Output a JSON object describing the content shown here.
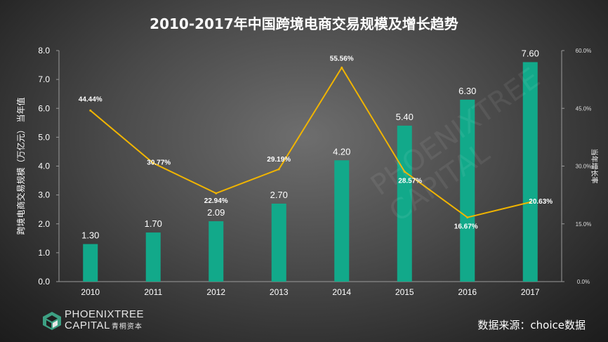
{
  "title": "2010-2017年中国跨境电商交易规模及增长趋势",
  "source": "数据来源：choice数据",
  "logo": {
    "line1": "PHOENIXTREE",
    "line2": "CAPITAL",
    "line2_cn": "青桐资本",
    "mark_color": "#3da083"
  },
  "chart_data": {
    "type": "bar",
    "categories": [
      "2010",
      "2011",
      "2012",
      "2013",
      "2014",
      "2015",
      "2016",
      "2017"
    ],
    "series": [
      {
        "type": "bar",
        "axis": "left",
        "color": "#12a98a",
        "values": [
          1.3,
          1.7,
          2.09,
          2.7,
          4.2,
          5.4,
          6.3,
          7.6
        ],
        "labels": [
          "1.30",
          "1.70",
          "2.09",
          "2.70",
          "4.20",
          "5.40",
          "6.30",
          "7.60"
        ]
      },
      {
        "type": "line",
        "axis": "right",
        "color": "#f0b400",
        "values": [
          44.44,
          30.77,
          22.94,
          29.19,
          55.56,
          28.57,
          16.67,
          20.63
        ],
        "labels": [
          "44.44%",
          "30.77%",
          "22.94%",
          "29.19%",
          "55.56%",
          "28.57%",
          "16.67%",
          "20.63%"
        ]
      }
    ],
    "ylabel": "跨境电商交易规模（万亿元）  当年值",
    "y2label": "当年增长率",
    "ylim": [
      0,
      8
    ],
    "y2lim": [
      0,
      60
    ],
    "yticks": [
      "0.0",
      "1.0",
      "2.0",
      "3.0",
      "4.0",
      "5.0",
      "6.0",
      "7.0",
      "8.0"
    ],
    "y2ticks": [
      "0.0%",
      "15.0%",
      "30.0%",
      "45.0%",
      "60.0%"
    ],
    "grid": false
  }
}
